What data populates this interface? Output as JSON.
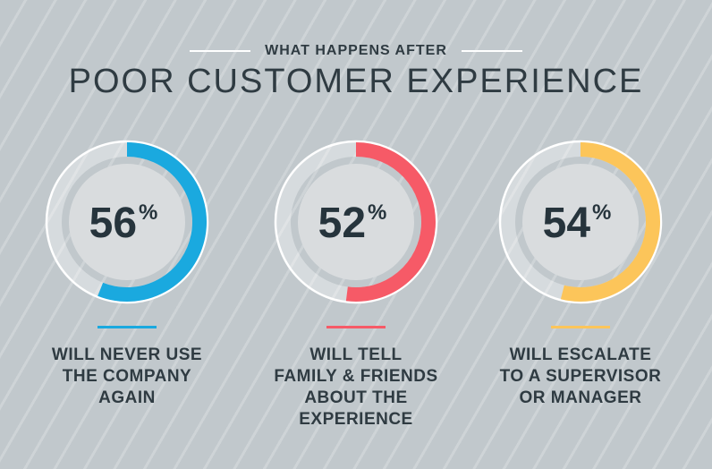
{
  "header": {
    "subtitle": "WHAT HAPPENS AFTER",
    "title": "POOR CUSTOMER EXPERIENCE"
  },
  "chart_data": {
    "type": "donut",
    "title": "WHAT HAPPENS AFTER POOR CUSTOMER EXPERIENCE",
    "series": [
      {
        "value": 56,
        "unit": "%",
        "label": "WILL NEVER USE\nTHE COMPANY\nAGAIN",
        "color": "#1aa9df"
      },
      {
        "value": 52,
        "unit": "%",
        "label": "WILL TELL\nFAMILY & FRIENDS\nABOUT THE\nEXPERIENCE",
        "color": "#f65a67"
      },
      {
        "value": 54,
        "unit": "%",
        "label": "WILL ESCALATE\nTO A SUPERVISOR\nOR MANAGER",
        "color": "#fcc55a"
      }
    ]
  },
  "colors": {
    "text": "#2f3b42",
    "ring_inner": "#d9dcde",
    "ring_border": "#ffffff",
    "background": "#c1c8cc"
  }
}
